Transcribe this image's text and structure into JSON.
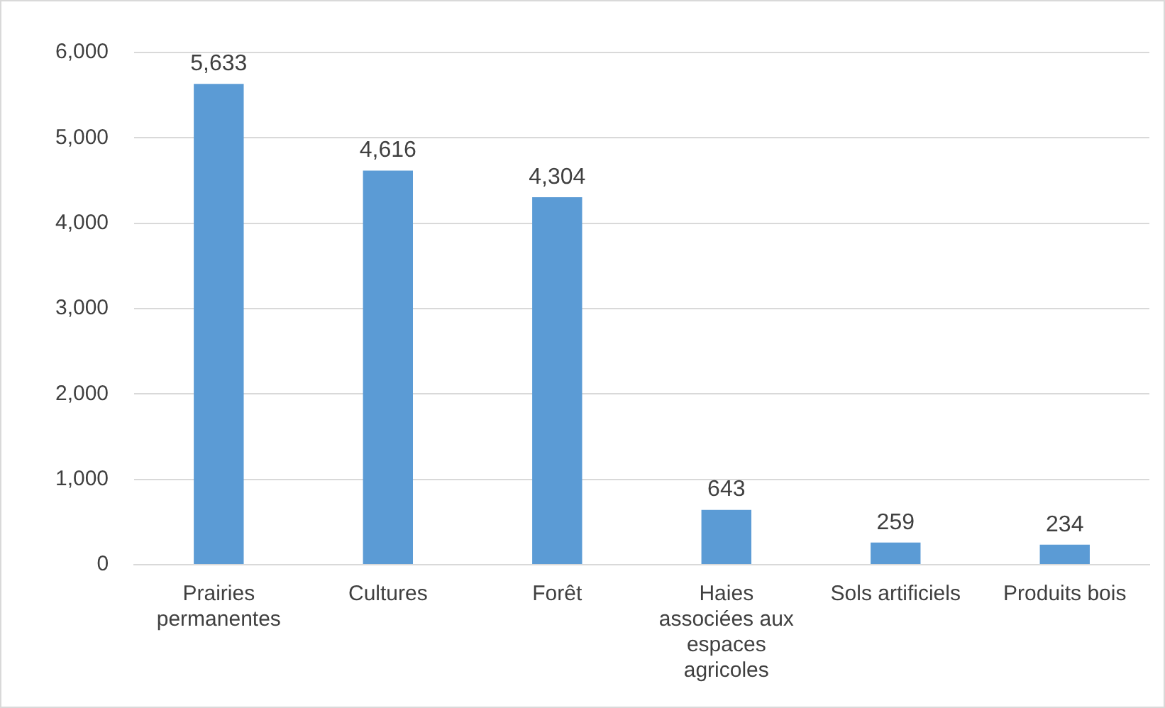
{
  "chart_data": {
    "type": "bar",
    "categories": [
      "Prairies permanentes",
      "Cultures",
      "Forêt",
      "Haies associées aux espaces agricoles",
      "Sols artificiels",
      "Produits bois"
    ],
    "values": [
      5633,
      4616,
      4304,
      643,
      259,
      234
    ],
    "value_labels": [
      "5,633",
      "4,616",
      "4,304",
      "643",
      "259",
      "234"
    ],
    "color": "#5b9bd5",
    "ylim": [
      0,
      6000
    ],
    "yticks": [
      {
        "value": 0,
        "label": "0"
      },
      {
        "value": 1000,
        "label": "1,000"
      },
      {
        "value": 2000,
        "label": "2,000"
      },
      {
        "value": 3000,
        "label": "3,000"
      },
      {
        "value": 4000,
        "label": "4,000"
      },
      {
        "value": 5000,
        "label": "5,000"
      },
      {
        "value": 6000,
        "label": "6,000"
      }
    ],
    "grid": "y",
    "legend": false
  }
}
